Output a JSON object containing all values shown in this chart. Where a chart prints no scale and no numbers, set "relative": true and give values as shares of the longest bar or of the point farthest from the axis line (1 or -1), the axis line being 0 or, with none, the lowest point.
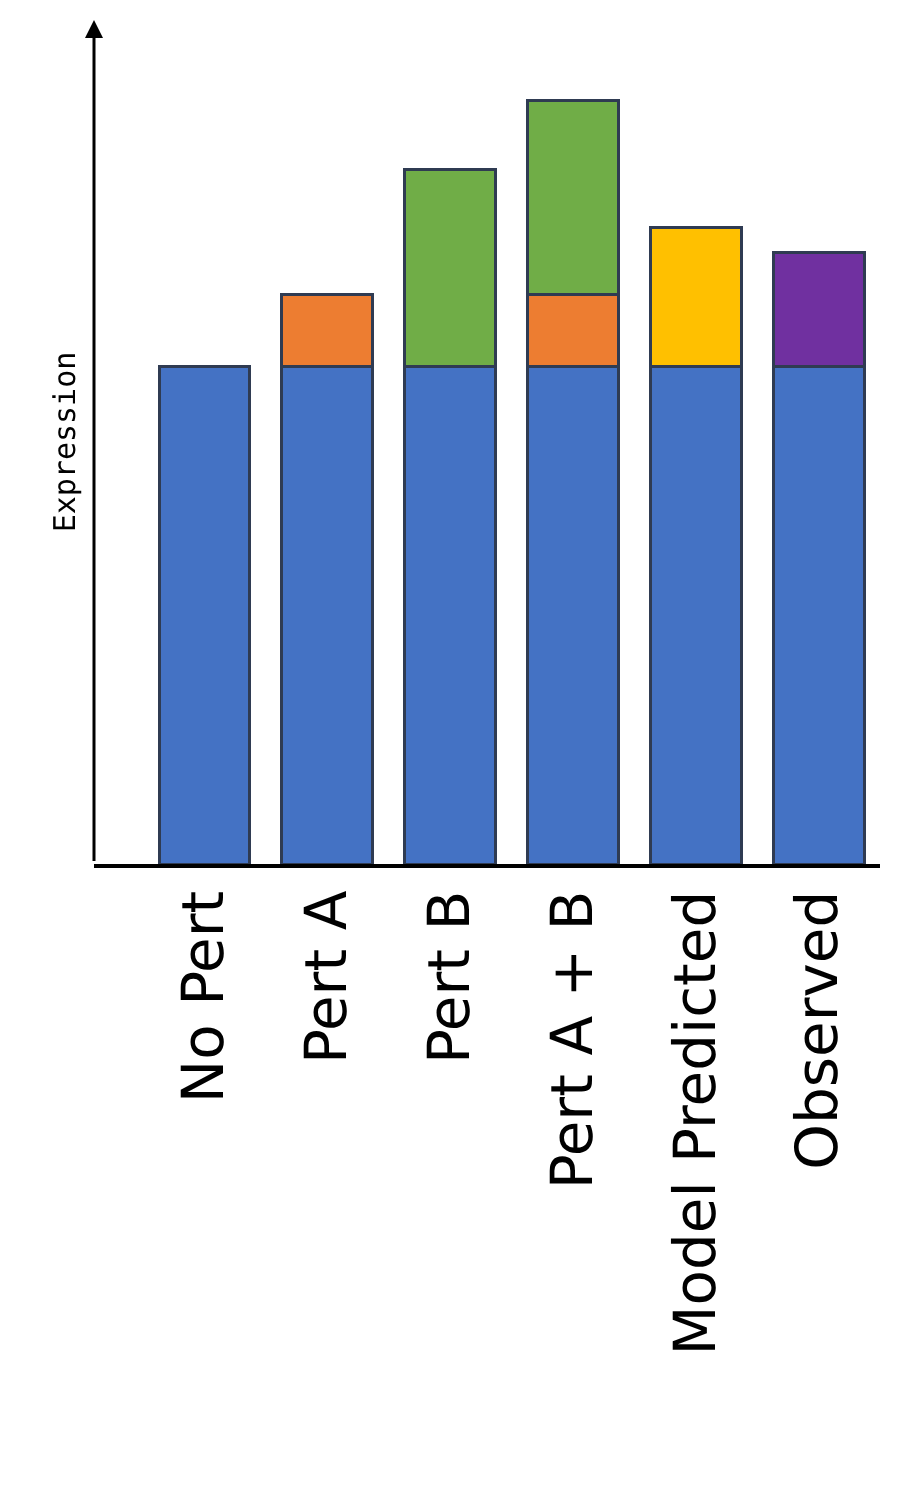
{
  "chart_data": {
    "type": "bar",
    "stacked": true,
    "relative": true,
    "ylabel": "Expression",
    "categories": [
      "No Pert",
      "Pert A",
      "Pert B",
      "Pert A + B",
      "Model Predicted",
      "Observed"
    ],
    "series": [
      {
        "color": "#4472c4",
        "values": [
          0.652,
          0.652,
          0.652,
          0.652,
          0.652,
          0.652
        ]
      },
      {
        "color": "#ed7d31",
        "values": [
          null,
          0.094,
          null,
          0.094,
          null,
          null
        ]
      },
      {
        "color": "#70ad47",
        "values": [
          null,
          null,
          0.257,
          0.254,
          null,
          null
        ]
      },
      {
        "color": "#ffc000",
        "values": [
          null,
          null,
          null,
          null,
          0.181,
          null
        ]
      },
      {
        "color": "#7030a0",
        "values": [
          null,
          null,
          null,
          null,
          null,
          0.149
        ]
      }
    ]
  }
}
